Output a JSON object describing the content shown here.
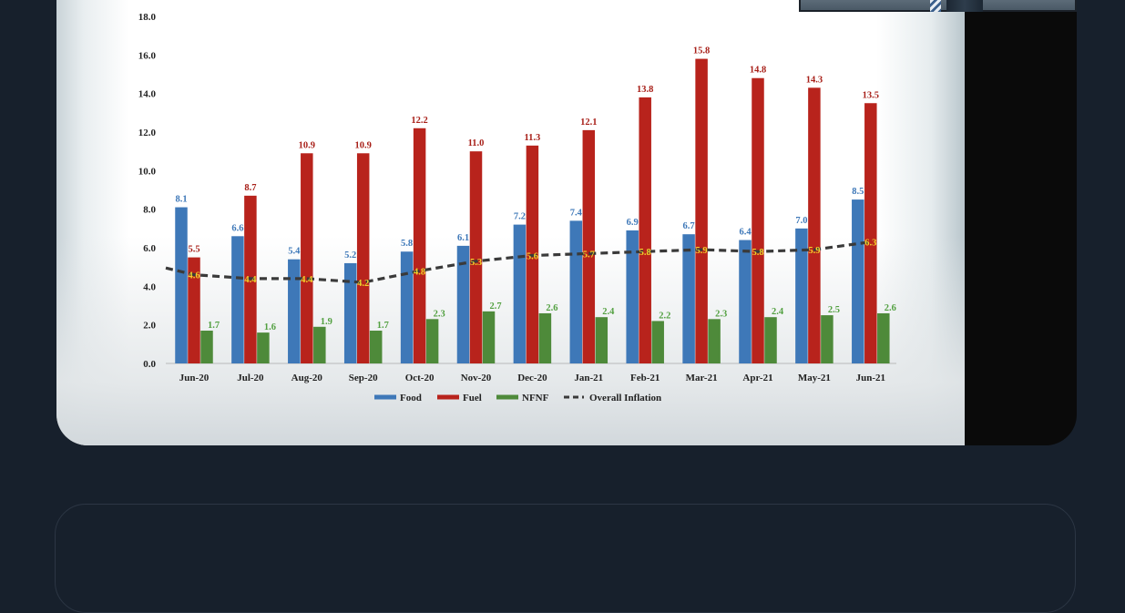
{
  "chart_data": {
    "type": "bar",
    "categories": [
      "Jun-20",
      "Jul-20",
      "Aug-20",
      "Sep-20",
      "Oct-20",
      "Nov-20",
      "Dec-20",
      "Jan-21",
      "Feb-21",
      "Mar-21",
      "Apr-21",
      "May-21",
      "Jun-21"
    ],
    "series": [
      {
        "name": "Food",
        "type": "bar",
        "color": "#3e78b8",
        "label_color": "#3e78b8",
        "values": [
          8.1,
          6.6,
          5.4,
          5.2,
          5.8,
          6.1,
          7.2,
          7.4,
          6.9,
          6.7,
          6.4,
          7.0,
          8.5
        ]
      },
      {
        "name": "Fuel",
        "type": "bar",
        "color": "#b8231c",
        "label_color": "#a82019",
        "values": [
          5.5,
          8.7,
          10.9,
          10.9,
          12.2,
          11.0,
          11.3,
          12.1,
          13.8,
          15.8,
          14.8,
          14.3,
          13.5
        ]
      },
      {
        "name": "NFNF",
        "type": "bar",
        "color": "#4e8a3a",
        "label_color": "#52a040",
        "values": [
          1.7,
          1.6,
          1.9,
          1.7,
          2.3,
          2.7,
          2.6,
          2.4,
          2.2,
          2.3,
          2.4,
          2.5,
          2.6
        ]
      },
      {
        "name": "Overall Inflation",
        "type": "line",
        "style": "dashed",
        "color": "#3a3a3a",
        "label_color": "#f2d22a",
        "values": [
          4.6,
          4.4,
          4.4,
          4.2,
          4.8,
          5.3,
          5.6,
          5.7,
          5.8,
          5.9,
          5.8,
          5.9,
          6.3
        ]
      }
    ],
    "y_ticks": [
      "0.0",
      "2.0",
      "4.0",
      "6.0",
      "8.0",
      "10.0",
      "12.0",
      "14.0",
      "16.0",
      "18.0"
    ],
    "ylim": [
      0,
      18
    ],
    "grid": false,
    "legend_position": "bottom-center"
  }
}
